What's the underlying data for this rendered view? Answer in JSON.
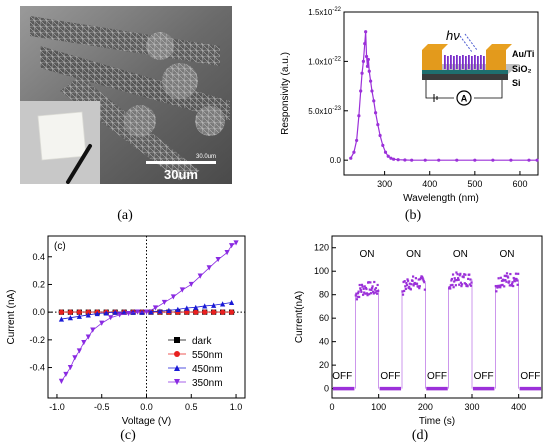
{
  "panel_a": {
    "caption": "(a)",
    "scale_bar_label": "30um",
    "scale_bar_small_label": "30.0um"
  },
  "panel_b": {
    "caption": "(b)",
    "inset": {
      "hv_label": "hν",
      "layer_labels": [
        "Au/Ti",
        "SiO₂",
        "Si"
      ],
      "meter_symbol": "A"
    }
  },
  "panel_c": {
    "caption": "(c)"
  },
  "panel_d": {
    "caption": "(d)"
  },
  "chart_data": [
    {
      "id": "b",
      "type": "line",
      "xlabel": "Wavelength (nm)",
      "ylabel": "Responsivity (a.u.)",
      "xlim": [
        210,
        640
      ],
      "ylim": [
        -1.5e-23,
        1.5e-22
      ],
      "xticks": [
        300,
        400,
        500,
        600
      ],
      "yticks": [
        0,
        5e-23,
        1e-22,
        1.5e-22
      ],
      "ytick_labels": [
        "0.0",
        "5.0x10^-23",
        "1.0x10^-22",
        "1.5x10^-22"
      ],
      "color": "#9b30d9",
      "x": [
        225,
        232,
        238,
        243,
        247,
        250,
        253,
        256,
        258,
        260,
        262,
        264,
        266,
        269,
        272,
        276,
        280,
        285,
        290,
        296,
        302,
        308,
        314,
        320,
        330,
        345,
        360,
        390,
        420,
        460,
        500,
        540,
        580,
        620,
        638
      ],
      "y": [
        2e-24,
        8e-24,
        2e-23,
        4.5e-23,
        7e-23,
        8.8e-23,
        1e-22,
        1.18e-22,
        1.3e-22,
        1.05e-22,
        9.5e-23,
        1.02e-22,
        9e-23,
        8e-23,
        7e-23,
        6e-23,
        4.8e-23,
        3.6e-23,
        2.5e-23,
        1.5e-23,
        8e-24,
        4e-24,
        2e-24,
        1e-24,
        5e-25,
        2e-25,
        0.0,
        0.0,
        0.0,
        0.0,
        0.0,
        0.0,
        0.0,
        0.0,
        0.0
      ]
    },
    {
      "id": "c",
      "type": "line",
      "panel_label": "(c)",
      "xlabel": "Voltage (V)",
      "ylabel": "Current (nA)",
      "xlim": [
        -1.1,
        1.1
      ],
      "ylim": [
        -0.62,
        0.55
      ],
      "xticks": [
        -1.0,
        -0.5,
        0.0,
        0.5,
        1.0
      ],
      "yticks": [
        -0.4,
        -0.2,
        0.0,
        0.2,
        0.4
      ],
      "legend_position": "bottom-right",
      "series": [
        {
          "name": "dark",
          "color": "#000000",
          "marker": "square",
          "x": [
            -0.95,
            -0.85,
            -0.75,
            -0.65,
            -0.55,
            -0.45,
            -0.35,
            -0.25,
            -0.15,
            -0.05,
            0.05,
            0.15,
            0.25,
            0.35,
            0.45,
            0.55,
            0.65,
            0.75,
            0.85,
            0.95
          ],
          "y": [
            0,
            0,
            0,
            0,
            0,
            0,
            0,
            0,
            0,
            0,
            0,
            0,
            0,
            0,
            0,
            0,
            0,
            0,
            0,
            0
          ]
        },
        {
          "name": "550nm",
          "color": "#e8201f",
          "marker": "circle",
          "x": [
            -0.95,
            -0.85,
            -0.75,
            -0.65,
            -0.55,
            -0.45,
            -0.35,
            -0.25,
            -0.15,
            -0.05,
            0.05,
            0.15,
            0.25,
            0.35,
            0.45,
            0.55,
            0.65,
            0.75,
            0.85,
            0.95
          ],
          "y": [
            0.0,
            0.0,
            0.0,
            0.0,
            0.0,
            0.0,
            0.0,
            0.0,
            0.0,
            0.0,
            0.0,
            0.0,
            0.0,
            0.0,
            0.0,
            0.0,
            0.0,
            0.0,
            0.0,
            0.0
          ]
        },
        {
          "name": "450nm",
          "color": "#1a1ad6",
          "marker": "triangle-up",
          "x": [
            -0.95,
            -0.85,
            -0.75,
            -0.65,
            -0.55,
            -0.45,
            -0.35,
            -0.25,
            -0.15,
            -0.05,
            0.05,
            0.15,
            0.25,
            0.35,
            0.45,
            0.55,
            0.65,
            0.75,
            0.85,
            0.95
          ],
          "y": [
            -0.05,
            -0.04,
            -0.03,
            -0.02,
            -0.01,
            -0.005,
            0.0,
            0.0,
            0.0,
            0.0,
            0.003,
            0.008,
            0.013,
            0.02,
            0.03,
            0.035,
            0.045,
            0.05,
            0.06,
            0.07
          ]
        },
        {
          "name": "350nm",
          "color": "#8a2be2",
          "marker": "triangle-down",
          "x": [
            -0.95,
            -0.9,
            -0.85,
            -0.8,
            -0.75,
            -0.7,
            -0.65,
            -0.6,
            -0.5,
            -0.4,
            -0.3,
            -0.2,
            -0.1,
            0.0,
            0.1,
            0.2,
            0.3,
            0.4,
            0.5,
            0.6,
            0.7,
            0.8,
            0.9,
            0.95,
            1.0
          ],
          "y": [
            -0.5,
            -0.45,
            -0.4,
            -0.33,
            -0.28,
            -0.22,
            -0.18,
            -0.13,
            -0.08,
            -0.04,
            -0.02,
            -0.01,
            0.0,
            0.0,
            0.03,
            0.07,
            0.11,
            0.16,
            0.2,
            0.26,
            0.32,
            0.38,
            0.43,
            0.48,
            0.5
          ]
        }
      ]
    },
    {
      "id": "d",
      "type": "line",
      "xlabel": "Time (s)",
      "ylabel": "Current(nA)",
      "xlim": [
        0,
        450
      ],
      "ylim": [
        -8,
        130
      ],
      "xticks": [
        0,
        100,
        200,
        300,
        400
      ],
      "yticks": [
        0,
        20,
        40,
        60,
        80,
        100,
        120
      ],
      "color": "#9b30d9",
      "state_labels": [
        "OFF",
        "ON",
        "OFF",
        "ON",
        "OFF",
        "ON",
        "OFF",
        "ON",
        "OFF"
      ],
      "on_intervals": [
        [
          50,
          100
        ],
        [
          150,
          200
        ],
        [
          250,
          300
        ],
        [
          350,
          400
        ]
      ],
      "on_level": [
        85,
        90,
        93,
        93
      ],
      "off_level": 0
    }
  ]
}
